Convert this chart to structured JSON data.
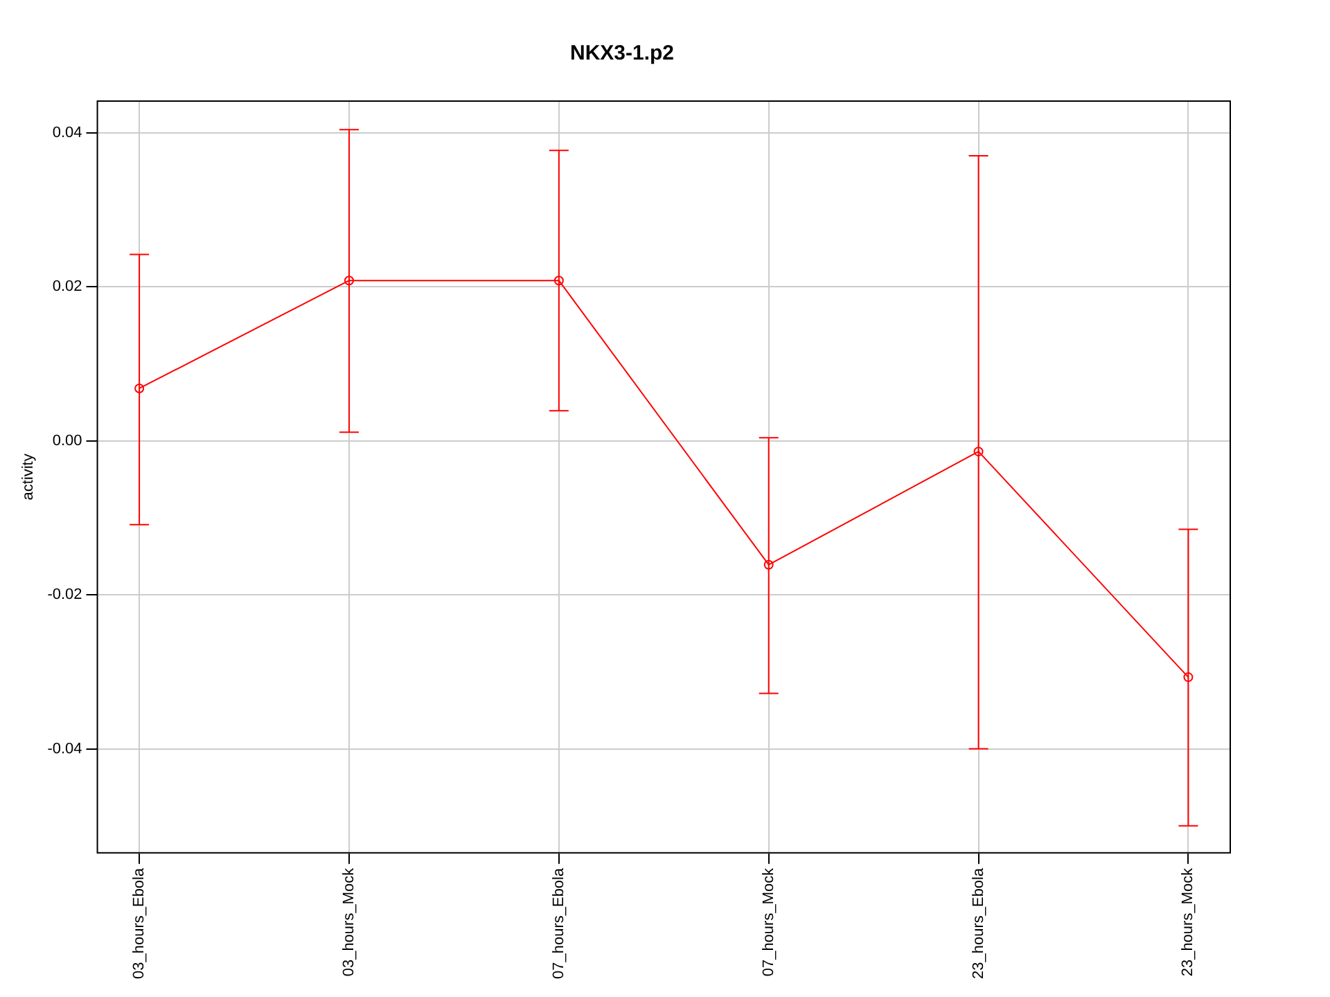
{
  "chart_data": {
    "type": "line",
    "title": "NKX3-1.p2",
    "ylabel": "activity",
    "categories": [
      "03_hours_Ebola",
      "03_hours_Mock",
      "07_hours_Ebola",
      "07_hours_Mock",
      "23_hours_Ebola",
      "23_hours_Mock"
    ],
    "series": [
      {
        "color": "#ff0000",
        "values": [
          0.0068,
          0.0208,
          0.0208,
          -0.0161,
          -0.0014,
          -0.0307
        ],
        "errors": [
          [
            -0.0109,
            0.0242
          ],
          [
            0.0011,
            0.0404
          ],
          [
            0.0039,
            0.0377
          ],
          [
            -0.0328,
            0.0004
          ],
          [
            -0.04,
            0.037
          ],
          [
            -0.05,
            -0.0115
          ]
        ]
      }
    ],
    "ylim": [
      -0.0535,
      0.0441
    ],
    "yticks": [
      {
        "value": -0.04,
        "label": "-0.04"
      },
      {
        "value": -0.02,
        "label": "-0.02"
      },
      {
        "value": 0,
        "label": "0.00"
      },
      {
        "value": 0.02,
        "label": "0.02"
      },
      {
        "value": 0.04,
        "label": "0.04"
      }
    ],
    "grid": true,
    "marker": "circle",
    "line_style": "solid",
    "legend": false
  }
}
